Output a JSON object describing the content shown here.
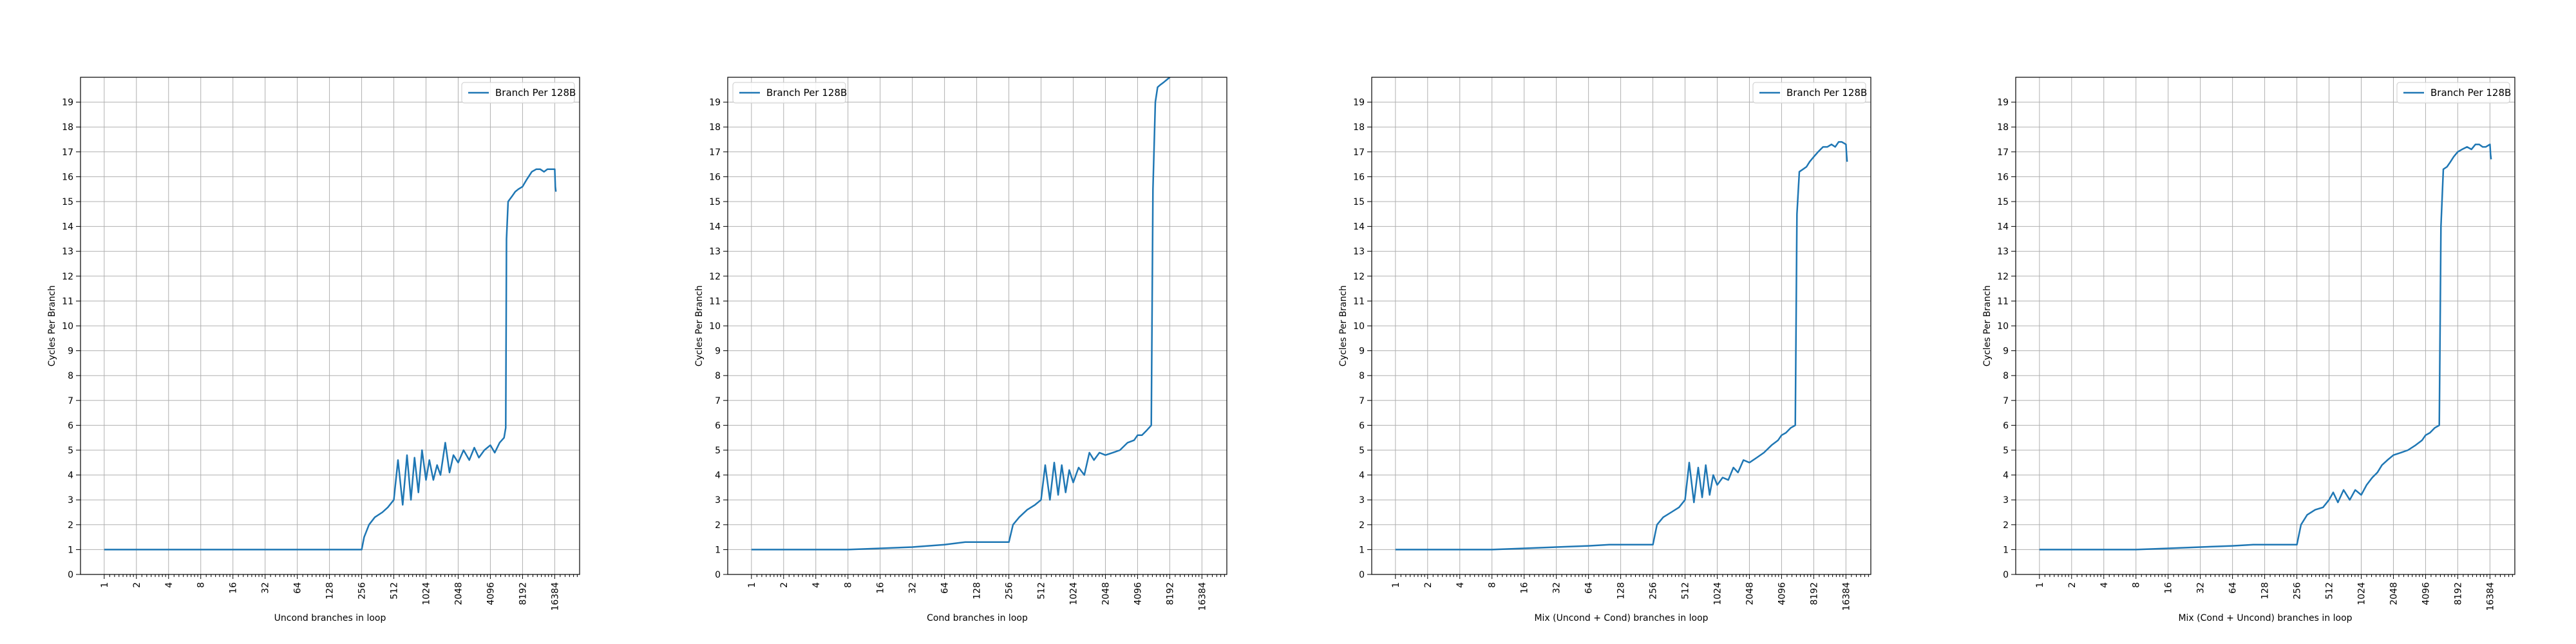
{
  "chart_data": [
    {
      "type": "line",
      "xlabel": "Uncond branches in loop",
      "ylabel": "Cycles Per Branch",
      "x_scale": "log2",
      "xlim": [
        0.6,
        28000
      ],
      "ylim": [
        0,
        20
      ],
      "x_ticks": [
        1,
        2,
        4,
        8,
        16,
        32,
        64,
        128,
        256,
        512,
        1024,
        2048,
        4096,
        8192,
        16384
      ],
      "y_ticks": [
        0,
        1,
        2,
        3,
        4,
        5,
        6,
        7,
        8,
        9,
        10,
        11,
        12,
        13,
        14,
        15,
        16,
        17,
        18,
        19
      ],
      "grid": true,
      "legend_position": "top-right",
      "series": [
        {
          "name": "Branch Per 128B",
          "color": "#1f77b4",
          "x": [
            1,
            2,
            4,
            8,
            16,
            32,
            64,
            128,
            200,
            256,
            270,
            300,
            340,
            400,
            450,
            512,
            560,
            620,
            680,
            740,
            800,
            870,
            940,
            1024,
            1100,
            1200,
            1300,
            1400,
            1550,
            1700,
            1850,
            2048,
            2300,
            2600,
            2900,
            3200,
            3600,
            4096,
            4500,
            5000,
            5500,
            5700,
            5800,
            6000,
            6500,
            7000,
            7500,
            8192,
            9000,
            10000,
            11000,
            12000,
            13000,
            14000,
            15000,
            16384,
            16600,
            16800
          ],
          "y": [
            1.0,
            1.0,
            1.0,
            1.0,
            1.0,
            1.0,
            1.0,
            1.0,
            1.0,
            1.0,
            1.5,
            2.0,
            2.3,
            2.5,
            2.7,
            3.0,
            4.6,
            2.8,
            4.8,
            3.0,
            4.7,
            3.3,
            5.0,
            3.8,
            4.6,
            3.8,
            4.4,
            4.0,
            5.3,
            4.1,
            4.8,
            4.5,
            5.0,
            4.6,
            5.1,
            4.7,
            5.0,
            5.2,
            4.9,
            5.3,
            5.5,
            5.9,
            13.5,
            15.0,
            15.2,
            15.4,
            15.5,
            15.6,
            15.9,
            16.2,
            16.3,
            16.3,
            16.2,
            16.3,
            16.3,
            16.3,
            15.6,
            15.4
          ]
        }
      ]
    },
    {
      "type": "line",
      "xlabel": "Cond branches in loop",
      "ylabel": "Cycles Per Branch",
      "x_scale": "log2",
      "xlim": [
        0.6,
        28000
      ],
      "ylim": [
        0,
        20
      ],
      "x_ticks": [
        1,
        2,
        4,
        8,
        16,
        32,
        64,
        128,
        256,
        512,
        1024,
        2048,
        4096,
        8192,
        16384
      ],
      "y_ticks": [
        0,
        1,
        2,
        3,
        4,
        5,
        6,
        7,
        8,
        9,
        10,
        11,
        12,
        13,
        14,
        15,
        16,
        17,
        18,
        19
      ],
      "grid": true,
      "legend_position": "top-left",
      "series": [
        {
          "name": "Branch Per 128B",
          "color": "#1f77b4",
          "x": [
            1,
            2,
            4,
            8,
            16,
            32,
            64,
            100,
            128,
            200,
            256,
            280,
            320,
            380,
            450,
            512,
            560,
            620,
            680,
            740,
            800,
            870,
            940,
            1024,
            1150,
            1300,
            1450,
            1600,
            1800,
            2048,
            2400,
            2800,
            3300,
            3800,
            4096,
            4500,
            5000,
            5500,
            5700,
            6000,
            6300,
            6700,
            7200,
            8192,
            9000,
            10000
          ],
          "y": [
            1.0,
            1.0,
            1.0,
            1.0,
            1.05,
            1.1,
            1.2,
            1.3,
            1.3,
            1.3,
            1.3,
            2.0,
            2.3,
            2.6,
            2.8,
            3.0,
            4.4,
            3.0,
            4.5,
            3.2,
            4.4,
            3.3,
            4.2,
            3.7,
            4.3,
            4.0,
            4.9,
            4.6,
            4.9,
            4.8,
            4.9,
            5.0,
            5.3,
            5.4,
            5.6,
            5.6,
            5.8,
            6.0,
            15.5,
            19.0,
            19.6,
            19.7,
            19.8,
            20.0,
            20.5,
            21.0
          ]
        }
      ]
    },
    {
      "type": "line",
      "xlabel": "Mix (Uncond + Cond) branches in loop",
      "ylabel": "Cycles Per Branch",
      "x_scale": "log2",
      "xlim": [
        0.6,
        28000
      ],
      "ylim": [
        0,
        20
      ],
      "x_ticks": [
        1,
        2,
        4,
        8,
        16,
        32,
        64,
        128,
        256,
        512,
        1024,
        2048,
        4096,
        8192,
        16384
      ],
      "y_ticks": [
        0,
        1,
        2,
        3,
        4,
        5,
        6,
        7,
        8,
        9,
        10,
        11,
        12,
        13,
        14,
        15,
        16,
        17,
        18,
        19
      ],
      "grid": true,
      "legend_position": "top-right",
      "series": [
        {
          "name": "Branch Per 128B",
          "color": "#1f77b4",
          "x": [
            1,
            2,
            4,
            8,
            16,
            32,
            64,
            100,
            128,
            200,
            256,
            280,
            320,
            380,
            450,
            512,
            560,
            620,
            680,
            740,
            800,
            870,
            940,
            1024,
            1150,
            1300,
            1450,
            1600,
            1800,
            2048,
            2400,
            2800,
            3300,
            3800,
            4096,
            4500,
            5000,
            5500,
            5700,
            6000,
            6500,
            7000,
            7500,
            8192,
            9000,
            10000,
            11000,
            12000,
            13000,
            14000,
            15000,
            16384,
            16600,
            16800
          ],
          "y": [
            1.0,
            1.0,
            1.0,
            1.0,
            1.05,
            1.1,
            1.15,
            1.2,
            1.2,
            1.2,
            1.2,
            2.0,
            2.3,
            2.5,
            2.7,
            3.0,
            4.5,
            2.9,
            4.3,
            3.1,
            4.4,
            3.2,
            4.0,
            3.6,
            3.9,
            3.8,
            4.3,
            4.1,
            4.6,
            4.5,
            4.7,
            4.9,
            5.2,
            5.4,
            5.6,
            5.7,
            5.9,
            6.0,
            14.5,
            16.2,
            16.3,
            16.4,
            16.6,
            16.8,
            17.0,
            17.2,
            17.2,
            17.3,
            17.2,
            17.4,
            17.4,
            17.3,
            16.9,
            16.6
          ]
        }
      ]
    },
    {
      "type": "line",
      "xlabel": "Mix (Cond + Uncond) branches in loop",
      "ylabel": "Cycles Per Branch",
      "x_scale": "log2",
      "xlim": [
        0.6,
        28000
      ],
      "ylim": [
        0,
        20
      ],
      "x_ticks": [
        1,
        2,
        4,
        8,
        16,
        32,
        64,
        128,
        256,
        512,
        1024,
        2048,
        4096,
        8192,
        16384
      ],
      "y_ticks": [
        0,
        1,
        2,
        3,
        4,
        5,
        6,
        7,
        8,
        9,
        10,
        11,
        12,
        13,
        14,
        15,
        16,
        17,
        18,
        19
      ],
      "grid": true,
      "legend_position": "top-right",
      "series": [
        {
          "name": "Branch Per 128B",
          "color": "#1f77b4",
          "x": [
            1,
            2,
            4,
            8,
            16,
            32,
            64,
            100,
            128,
            200,
            256,
            280,
            320,
            380,
            450,
            512,
            560,
            620,
            700,
            800,
            900,
            1024,
            1150,
            1300,
            1450,
            1600,
            1800,
            2048,
            2400,
            2800,
            3300,
            3800,
            4096,
            4500,
            5000,
            5500,
            5700,
            6000,
            6500,
            7000,
            7500,
            8192,
            9000,
            10000,
            11000,
            12000,
            13000,
            14000,
            15000,
            16384,
            16600,
            16800
          ],
          "y": [
            1.0,
            1.0,
            1.0,
            1.0,
            1.05,
            1.1,
            1.15,
            1.2,
            1.2,
            1.2,
            1.2,
            2.0,
            2.4,
            2.6,
            2.7,
            3.0,
            3.3,
            2.9,
            3.4,
            3.0,
            3.4,
            3.2,
            3.6,
            3.9,
            4.1,
            4.4,
            4.6,
            4.8,
            4.9,
            5.0,
            5.2,
            5.4,
            5.6,
            5.7,
            5.9,
            6.0,
            14.0,
            16.3,
            16.4,
            16.6,
            16.8,
            17.0,
            17.1,
            17.2,
            17.1,
            17.3,
            17.3,
            17.2,
            17.2,
            17.3,
            16.9,
            16.7
          ]
        }
      ]
    }
  ]
}
